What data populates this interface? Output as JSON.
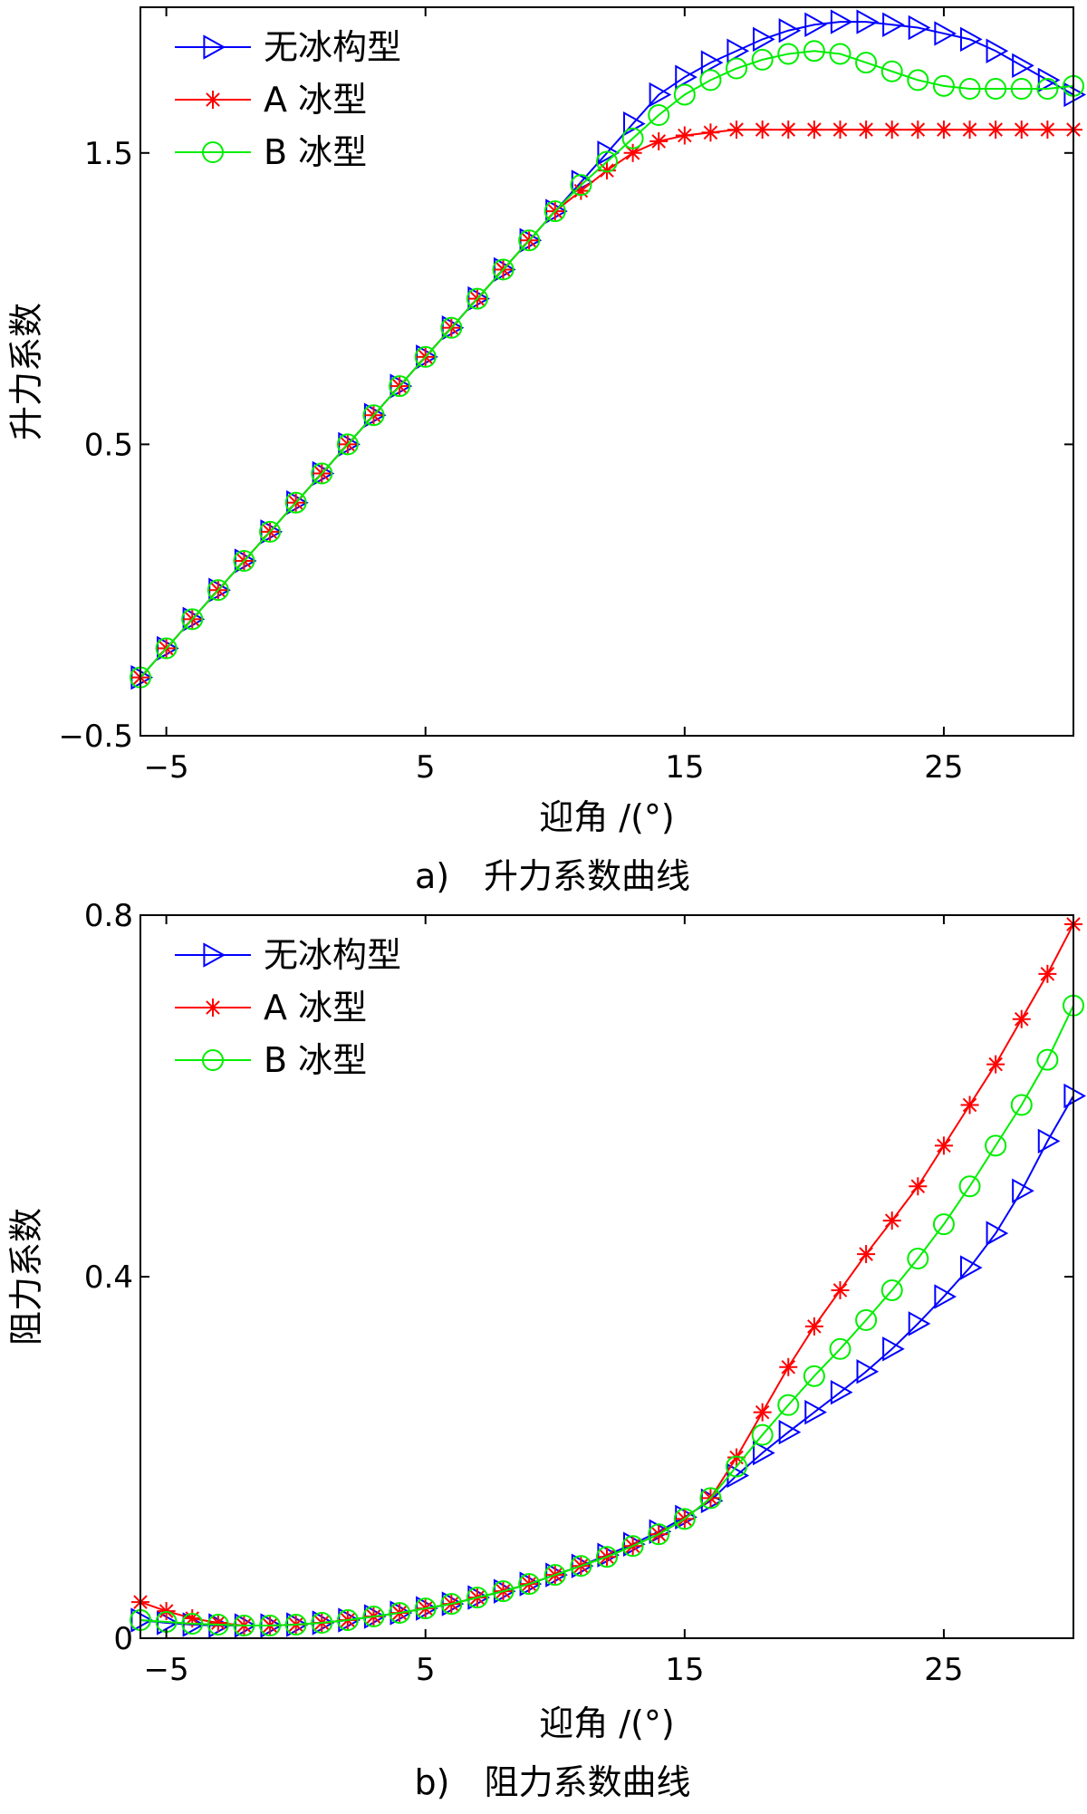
{
  "chart_data": [
    {
      "type": "line",
      "caption": "a)　升力系数曲线",
      "xlabel": "迎角 /(°)",
      "ylabel": "升力系数",
      "xlim": [
        -6,
        30
      ],
      "ylim": [
        -0.5,
        2.0
      ],
      "xticks": [
        -5,
        5,
        15,
        25
      ],
      "yticks": [
        -0.5,
        0.5,
        1.5
      ],
      "xtick_labels": [
        "−5",
        "5",
        "15",
        "25"
      ],
      "ytick_labels": [
        "−0.5",
        "0.5",
        "1.5"
      ],
      "legend_position": "top-left",
      "x": [
        -6,
        -5,
        -4,
        -3,
        -2,
        -1,
        0,
        1,
        2,
        3,
        4,
        5,
        6,
        7,
        8,
        9,
        10,
        11,
        12,
        13,
        14,
        15,
        16,
        17,
        18,
        19,
        20,
        21,
        22,
        23,
        24,
        25,
        26,
        27,
        28,
        29,
        30
      ],
      "series": [
        {
          "name": "无冰构型",
          "color": "#0000ff",
          "marker": "triangle-right",
          "values": [
            -0.3,
            -0.2,
            -0.1,
            0.0,
            0.1,
            0.2,
            0.3,
            0.4,
            0.5,
            0.6,
            0.7,
            0.8,
            0.9,
            1.0,
            1.1,
            1.2,
            1.3,
            1.4,
            1.5,
            1.6,
            1.7,
            1.76,
            1.81,
            1.85,
            1.89,
            1.92,
            1.94,
            1.95,
            1.95,
            1.94,
            1.93,
            1.91,
            1.89,
            1.85,
            1.8,
            1.75,
            1.7
          ]
        },
        {
          "name": "A 冰型",
          "color": "#ff0000",
          "marker": "asterisk",
          "values": [
            -0.3,
            -0.2,
            -0.1,
            0.0,
            0.1,
            0.2,
            0.3,
            0.4,
            0.5,
            0.6,
            0.7,
            0.8,
            0.9,
            1.0,
            1.1,
            1.2,
            1.3,
            1.37,
            1.44,
            1.5,
            1.54,
            1.56,
            1.57,
            1.58,
            1.58,
            1.58,
            1.58,
            1.58,
            1.58,
            1.58,
            1.58,
            1.58,
            1.58,
            1.58,
            1.58,
            1.58,
            1.58
          ]
        },
        {
          "name": "B 冰型",
          "color": "#00ee00",
          "marker": "circle",
          "values": [
            -0.3,
            -0.2,
            -0.1,
            0.0,
            0.1,
            0.2,
            0.3,
            0.4,
            0.5,
            0.6,
            0.7,
            0.8,
            0.9,
            1.0,
            1.1,
            1.2,
            1.3,
            1.39,
            1.47,
            1.55,
            1.63,
            1.7,
            1.75,
            1.79,
            1.82,
            1.84,
            1.85,
            1.84,
            1.81,
            1.78,
            1.75,
            1.73,
            1.72,
            1.72,
            1.72,
            1.72,
            1.73
          ]
        }
      ]
    },
    {
      "type": "line",
      "caption": "b)　阻力系数曲线",
      "xlabel": "迎角 /(°)",
      "ylabel": "阻力系数",
      "xlim": [
        -6,
        30
      ],
      "ylim": [
        0,
        0.8
      ],
      "xticks": [
        -5,
        5,
        15,
        25
      ],
      "yticks": [
        0,
        0.4,
        0.8
      ],
      "xtick_labels": [
        "−5",
        "5",
        "15",
        "25"
      ],
      "ytick_labels": [
        "0",
        "0.4",
        "0.8"
      ],
      "legend_position": "top-left",
      "x": [
        -6,
        -5,
        -4,
        -3,
        -2,
        -1,
        0,
        1,
        2,
        3,
        4,
        5,
        6,
        7,
        8,
        9,
        10,
        11,
        12,
        13,
        14,
        15,
        16,
        17,
        18,
        19,
        20,
        21,
        22,
        23,
        24,
        25,
        26,
        27,
        28,
        29,
        30
      ],
      "series": [
        {
          "name": "无冰构型",
          "color": "#0000ff",
          "marker": "triangle-right",
          "values": [
            0.02,
            0.017,
            0.015,
            0.014,
            0.014,
            0.014,
            0.015,
            0.017,
            0.02,
            0.024,
            0.028,
            0.033,
            0.038,
            0.045,
            0.052,
            0.06,
            0.07,
            0.08,
            0.092,
            0.104,
            0.118,
            0.134,
            0.152,
            0.18,
            0.205,
            0.228,
            0.25,
            0.272,
            0.295,
            0.32,
            0.348,
            0.378,
            0.41,
            0.448,
            0.495,
            0.55,
            0.6
          ]
        },
        {
          "name": "A 冰型",
          "color": "#ff0000",
          "marker": "asterisk",
          "values": [
            0.04,
            0.03,
            0.022,
            0.017,
            0.014,
            0.014,
            0.015,
            0.017,
            0.02,
            0.024,
            0.028,
            0.033,
            0.038,
            0.045,
            0.052,
            0.06,
            0.07,
            0.08,
            0.09,
            0.102,
            0.115,
            0.132,
            0.155,
            0.2,
            0.25,
            0.3,
            0.345,
            0.385,
            0.425,
            0.462,
            0.5,
            0.545,
            0.59,
            0.635,
            0.685,
            0.735,
            0.79
          ]
        },
        {
          "name": "B 冰型",
          "color": "#00ee00",
          "marker": "circle",
          "values": [
            0.02,
            0.018,
            0.016,
            0.015,
            0.014,
            0.014,
            0.015,
            0.017,
            0.02,
            0.024,
            0.028,
            0.033,
            0.038,
            0.045,
            0.052,
            0.06,
            0.07,
            0.08,
            0.09,
            0.102,
            0.115,
            0.132,
            0.155,
            0.19,
            0.225,
            0.258,
            0.29,
            0.32,
            0.352,
            0.385,
            0.42,
            0.458,
            0.5,
            0.545,
            0.59,
            0.64,
            0.7
          ]
        }
      ]
    }
  ]
}
